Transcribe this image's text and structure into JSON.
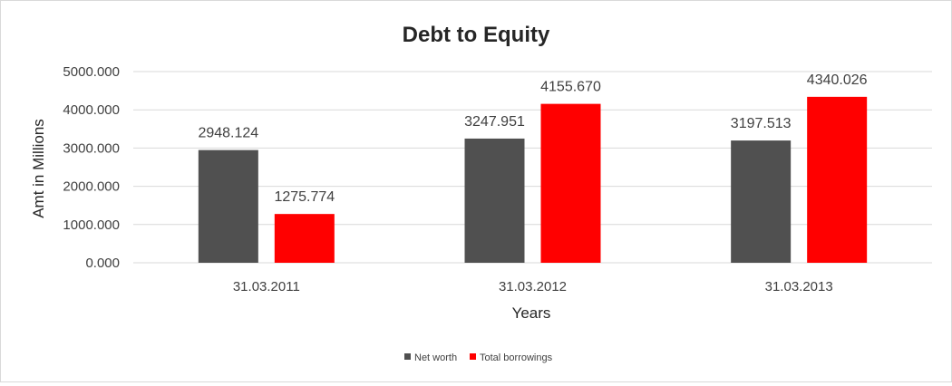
{
  "chart_data": {
    "type": "bar",
    "title": "Debt to Equity",
    "xlabel": "Years",
    "ylabel": "Amt in Millions",
    "categories": [
      "31.03.2011",
      "31.03.2012",
      "31.03.2013"
    ],
    "series": [
      {
        "name": "Net worth",
        "color": "#505050",
        "values": [
          2948.124,
          3247.951,
          3197.513
        ],
        "labels": [
          "2948.124",
          "3247.951",
          "3197.513"
        ]
      },
      {
        "name": "Total borrowings",
        "color": "#ff0000",
        "values": [
          1275.774,
          4155.67,
          4340.026
        ],
        "labels": [
          "1275.774",
          "4155.670",
          "4340.026"
        ]
      }
    ],
    "ylim": [
      0,
      5000
    ],
    "yticks": [
      0,
      1000,
      2000,
      3000,
      4000,
      5000
    ],
    "ytick_labels": [
      "0.000",
      "1000.000",
      "2000.000",
      "3000.000",
      "4000.000",
      "5000.000"
    ],
    "grid": true,
    "legend_position": "bottom"
  }
}
